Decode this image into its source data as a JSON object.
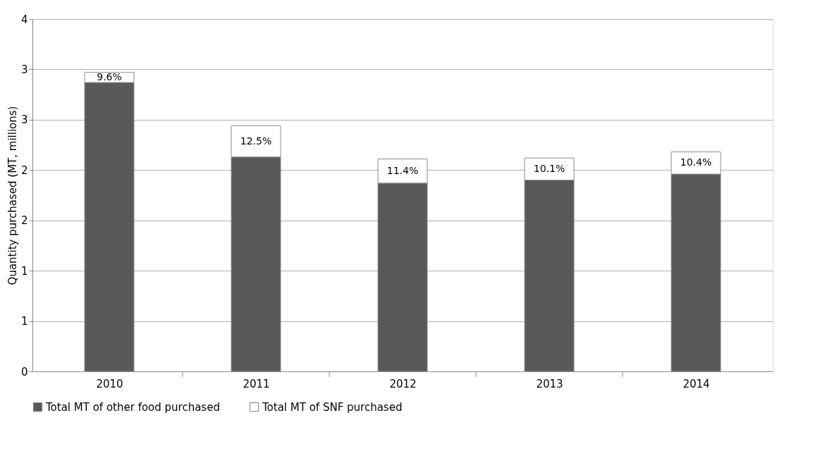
{
  "chart_data": {
    "type": "bar",
    "stacked": true,
    "ylabel": "Quantity purchased (MT, millions)",
    "categories": [
      "2010",
      "2011",
      "2012",
      "2013",
      "2014"
    ],
    "series": [
      {
        "name": "Total MT of other food purchased",
        "color": "#595959",
        "values": [
          2.87,
          2.13,
          1.87,
          1.9,
          1.96
        ]
      },
      {
        "name": "Total MT of SNF purchased",
        "color": "#ffffff",
        "values": [
          0.1,
          0.31,
          0.24,
          0.22,
          0.22
        ]
      }
    ],
    "annotations": [
      "9.6%",
      "12.5%",
      "11.4%",
      "10.1%",
      "10.4%"
    ],
    "ylim": [
      0,
      3.5
    ],
    "yticks": [
      0,
      {
        "value": 0.5,
        "label": "1"
      },
      1,
      {
        "value": 1.5,
        "label": "2"
      },
      2,
      {
        "value": 2.5,
        "label": "3"
      },
      3,
      {
        "value": 3.5,
        "label": "4"
      }
    ],
    "grid": "y",
    "legend": "bottom"
  }
}
